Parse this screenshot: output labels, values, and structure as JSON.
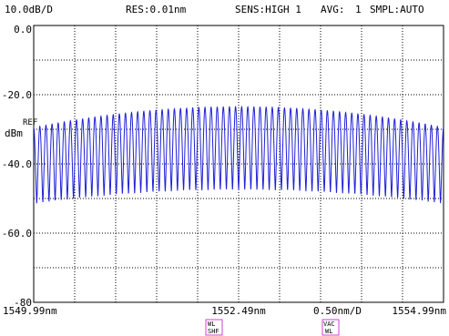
{
  "header": {
    "scale": "10.0dB/D",
    "resolution": "RES:0.01nm",
    "sensitivity": "SENS:HIGH 1",
    "average_label": "AVG:",
    "average_value": "1",
    "sampling": "SMPL:AUTO"
  },
  "markers": {
    "ref_label": "REF",
    "unit_label": "dBm"
  },
  "footer": {
    "span_per_div": "0.50nm/D",
    "wl_shf_tag": [
      "WL",
      "SHF"
    ],
    "vac_wl_tag": [
      "VAC",
      "WL"
    ]
  },
  "colors": {
    "trace": "#2020d8",
    "grid": "#000000",
    "tag_border": "#d040d0"
  },
  "chart_data": {
    "type": "line",
    "title": "",
    "xlabel": "",
    "ylabel": "dBm",
    "xlim": [
      1549.99,
      1554.99
    ],
    "ylim": [
      -80,
      0
    ],
    "x_tick_labels": [
      "1549.99nm",
      "1552.49nm",
      "1554.99nm"
    ],
    "x_tick_values": [
      1549.99,
      1552.49,
      1554.99
    ],
    "y_tick_labels": [
      "0.0",
      "-20.0",
      "-40.0",
      "-60.0",
      "-80"
    ],
    "y_tick_values": [
      0,
      -20,
      -40,
      -60,
      -80
    ],
    "grid": true,
    "series": [
      {
        "fringe_count": 67,
        "peak_dBm_at_edges": -29.5,
        "peak_dBm_at_center": -23.5,
        "trough_dBm_at_edges": -51.5,
        "trough_dBm_at_center": -47.5,
        "center_nm": 1552.49
      }
    ]
  }
}
